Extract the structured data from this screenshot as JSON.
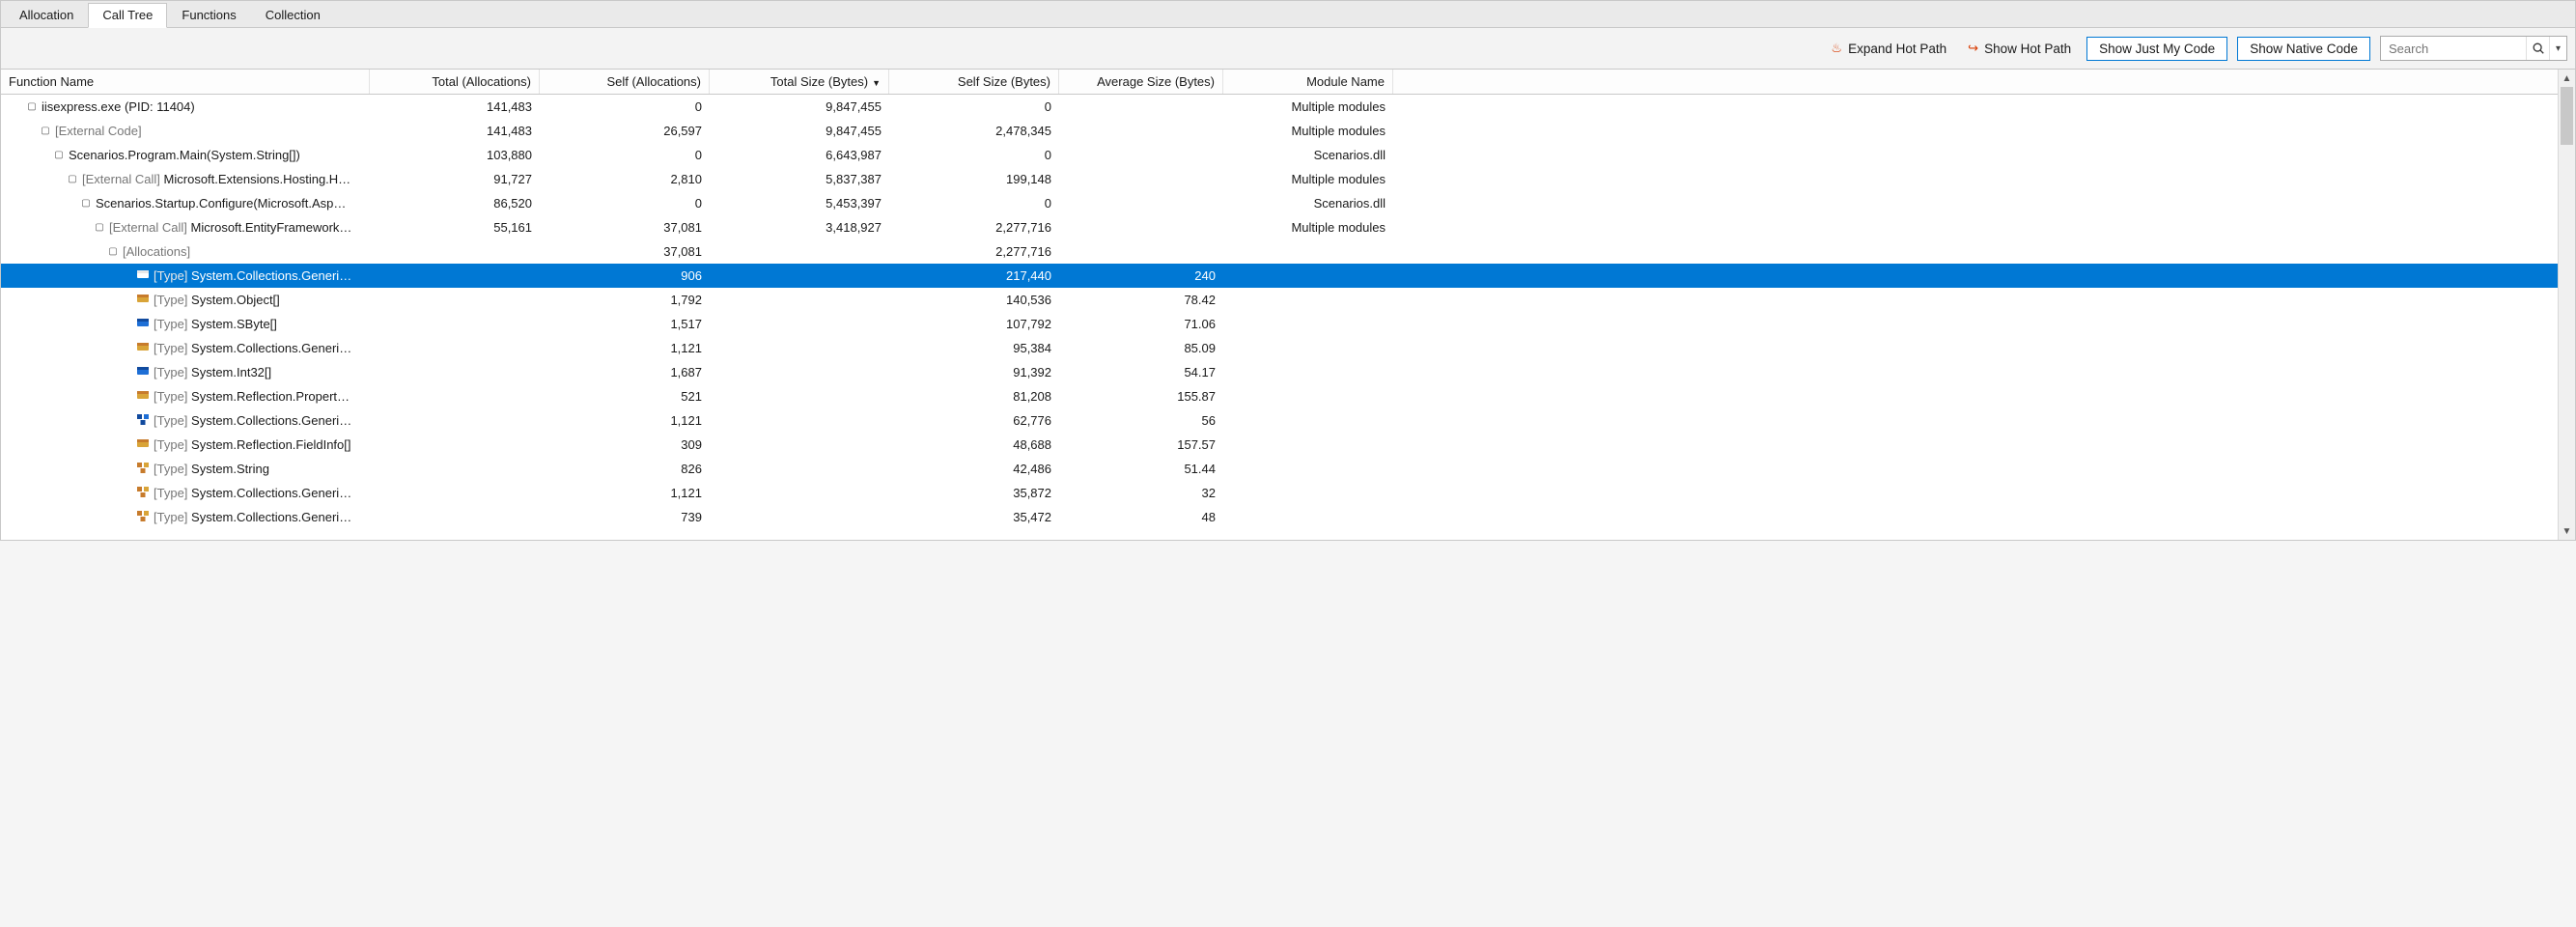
{
  "tabs": {
    "items": [
      {
        "label": "Allocation",
        "active": false
      },
      {
        "label": "Call Tree",
        "active": true
      },
      {
        "label": "Functions",
        "active": false
      },
      {
        "label": "Collection",
        "active": false
      }
    ]
  },
  "toolbar": {
    "expand_hot_path": "Expand Hot Path",
    "show_hot_path": "Show Hot Path",
    "show_just_my_code": "Show Just My Code",
    "show_native_code": "Show Native Code",
    "search_placeholder": "Search"
  },
  "columns": {
    "name": "Function Name",
    "total_alloc": "Total (Allocations)",
    "self_alloc": "Self (Allocations)",
    "total_size": "Total Size (Bytes)",
    "self_size": "Self Size (Bytes)",
    "avg_size": "Average Size (Bytes)",
    "module": "Module Name",
    "sort_indicator": "▼"
  },
  "icon_colors": {
    "orange": "#c77b2c",
    "gold": "#d9a438",
    "blue": "#1e6fd6",
    "dkblue": "#114a9e"
  },
  "rows": [
    {
      "indent": 1,
      "exp": "▢",
      "icon": "",
      "prefix": "",
      "name": "iisexpress.exe (PID: 11404)",
      "ta": "141,483",
      "sa": "0",
      "ts": "9,847,455",
      "ss": "0",
      "as": "",
      "mod": "Multiple modules"
    },
    {
      "indent": 2,
      "exp": "▢",
      "icon": "",
      "prefix": "",
      "name": "[External Code]",
      "muted": true,
      "ta": "141,483",
      "sa": "26,597",
      "ts": "9,847,455",
      "ss": "2,478,345",
      "as": "",
      "mod": "Multiple modules"
    },
    {
      "indent": 3,
      "exp": "▢",
      "icon": "",
      "prefix": "",
      "name": "Scenarios.Program.Main(System.String[])",
      "ta": "103,880",
      "sa": "0",
      "ts": "6,643,987",
      "ss": "0",
      "as": "",
      "mod": "Scenarios.dll"
    },
    {
      "indent": 4,
      "exp": "▢",
      "icon": "",
      "prefix": "[External Call] ",
      "name": "Microsoft.Extensions.Hosting.H…",
      "ta": "91,727",
      "sa": "2,810",
      "ts": "5,837,387",
      "ss": "199,148",
      "as": "",
      "mod": "Multiple modules"
    },
    {
      "indent": 5,
      "exp": "▢",
      "icon": "",
      "prefix": "",
      "name": "Scenarios.Startup.Configure(Microsoft.Asp…",
      "ta": "86,520",
      "sa": "0",
      "ts": "5,453,397",
      "ss": "0",
      "as": "",
      "mod": "Scenarios.dll"
    },
    {
      "indent": 6,
      "exp": "▢",
      "icon": "",
      "prefix": "[External Call] ",
      "name": "Microsoft.EntityFramework…",
      "ta": "55,161",
      "sa": "37,081",
      "ts": "3,418,927",
      "ss": "2,277,716",
      "as": "",
      "mod": "Multiple modules"
    },
    {
      "indent": 7,
      "exp": "▢",
      "icon": "",
      "prefix": "",
      "name": "[Allocations]",
      "muted": true,
      "ta": "",
      "sa": "37,081",
      "ts": "",
      "ss": "2,277,716",
      "as": "",
      "mod": ""
    },
    {
      "indent": 8,
      "exp": "",
      "icon": "class-blue",
      "prefix": "[Type] ",
      "name": "System.Collections.Generi…",
      "selected": true,
      "ta": "",
      "sa": "906",
      "ts": "",
      "ss": "217,440",
      "as": "240",
      "mod": ""
    },
    {
      "indent": 8,
      "exp": "",
      "icon": "class-gold",
      "prefix": "[Type] ",
      "name": "System.Object[]",
      "ta": "",
      "sa": "1,792",
      "ts": "",
      "ss": "140,536",
      "as": "78.42",
      "mod": ""
    },
    {
      "indent": 8,
      "exp": "",
      "icon": "class-blue",
      "prefix": "[Type] ",
      "name": "System.SByte[]",
      "ta": "",
      "sa": "1,517",
      "ts": "",
      "ss": "107,792",
      "as": "71.06",
      "mod": ""
    },
    {
      "indent": 8,
      "exp": "",
      "icon": "class-gold",
      "prefix": "[Type] ",
      "name": "System.Collections.Generi…",
      "ta": "",
      "sa": "1,121",
      "ts": "",
      "ss": "95,384",
      "as": "85.09",
      "mod": ""
    },
    {
      "indent": 8,
      "exp": "",
      "icon": "class-blue",
      "prefix": "[Type] ",
      "name": "System.Int32[]",
      "ta": "",
      "sa": "1,687",
      "ts": "",
      "ss": "91,392",
      "as": "54.17",
      "mod": ""
    },
    {
      "indent": 8,
      "exp": "",
      "icon": "class-gold",
      "prefix": "[Type] ",
      "name": "System.Reflection.Propert…",
      "ta": "",
      "sa": "521",
      "ts": "",
      "ss": "81,208",
      "as": "155.87",
      "mod": ""
    },
    {
      "indent": 8,
      "exp": "",
      "icon": "struct-dblue",
      "prefix": "[Type] ",
      "name": "System.Collections.Generi…",
      "ta": "",
      "sa": "1,121",
      "ts": "",
      "ss": "62,776",
      "as": "56",
      "mod": ""
    },
    {
      "indent": 8,
      "exp": "",
      "icon": "class-gold",
      "prefix": "[Type] ",
      "name": "System.Reflection.FieldInfo[]",
      "ta": "",
      "sa": "309",
      "ts": "",
      "ss": "48,688",
      "as": "157.57",
      "mod": ""
    },
    {
      "indent": 8,
      "exp": "",
      "icon": "struct-orange",
      "prefix": "[Type] ",
      "name": "System.String",
      "ta": "",
      "sa": "826",
      "ts": "",
      "ss": "42,486",
      "as": "51.44",
      "mod": ""
    },
    {
      "indent": 8,
      "exp": "",
      "icon": "struct-orange",
      "prefix": "[Type] ",
      "name": "System.Collections.Generi…",
      "ta": "",
      "sa": "1,121",
      "ts": "",
      "ss": "35,872",
      "as": "32",
      "mod": ""
    },
    {
      "indent": 8,
      "exp": "",
      "icon": "struct-orange",
      "prefix": "[Type] ",
      "name": "System.Collections.Generi…",
      "ta": "",
      "sa": "739",
      "ts": "",
      "ss": "35,472",
      "as": "48",
      "mod": ""
    }
  ]
}
